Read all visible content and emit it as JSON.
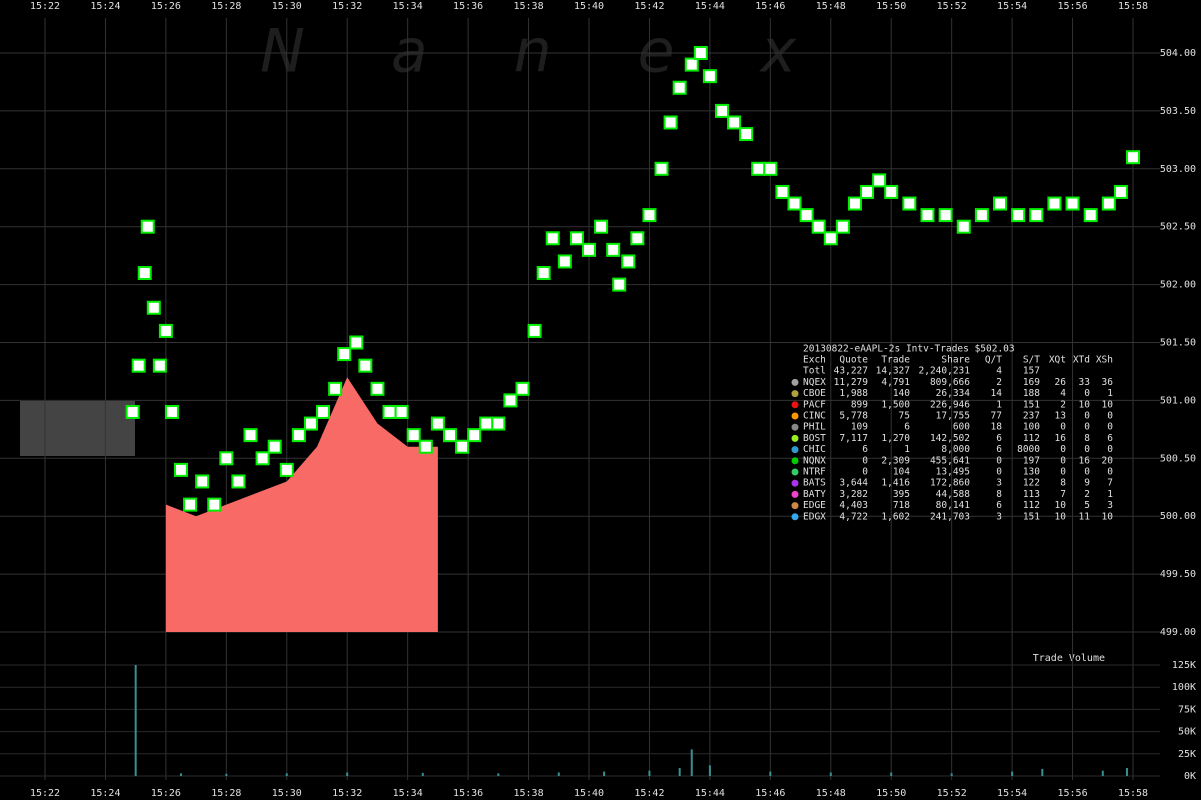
{
  "chart_data": {
    "type": "scatter",
    "watermark": "Nanex",
    "volume_label": "Trade Volume",
    "xlim": [
      921.4,
      958.6
    ],
    "xticks": [
      {
        "value": 922,
        "label": "15:22"
      },
      {
        "value": 924,
        "label": "15:24"
      },
      {
        "value": 926,
        "label": "15:26"
      },
      {
        "value": 928,
        "label": "15:28"
      },
      {
        "value": 930,
        "label": "15:30"
      },
      {
        "value": 932,
        "label": "15:32"
      },
      {
        "value": 934,
        "label": "15:34"
      },
      {
        "value": 936,
        "label": "15:36"
      },
      {
        "value": 938,
        "label": "15:38"
      },
      {
        "value": 940,
        "label": "15:40"
      },
      {
        "value": 942,
        "label": "15:42"
      },
      {
        "value": 944,
        "label": "15:44"
      },
      {
        "value": 946,
        "label": "15:46"
      },
      {
        "value": 948,
        "label": "15:48"
      },
      {
        "value": 950,
        "label": "15:50"
      },
      {
        "value": 952,
        "label": "15:52"
      },
      {
        "value": 954,
        "label": "15:54"
      },
      {
        "value": 956,
        "label": "15:56"
      },
      {
        "value": 958,
        "label": "15:58"
      }
    ],
    "ylim": [
      499,
      504.3
    ],
    "yticks": [
      {
        "value": 499,
        "label": "499.00"
      },
      {
        "value": 499.5,
        "label": "499.50"
      },
      {
        "value": 500,
        "label": "500.00"
      },
      {
        "value": 500.5,
        "label": "500.50"
      },
      {
        "value": 501,
        "label": "501.00"
      },
      {
        "value": 501.5,
        "label": "501.50"
      },
      {
        "value": 502,
        "label": "502.00"
      },
      {
        "value": 502.5,
        "label": "502.50"
      },
      {
        "value": 503,
        "label": "503.00"
      },
      {
        "value": 503.5,
        "label": "503.50"
      },
      {
        "value": 504,
        "label": "504.00"
      }
    ],
    "grid": true,
    "series": [
      {
        "name": "Trades",
        "color": "#00ee00",
        "x": [
          924.9,
          925.1,
          925.3,
          925.4,
          925.6,
          925.8,
          926.0,
          926.2,
          926.5,
          926.8,
          927.2,
          927.6,
          928.0,
          928.4,
          928.8,
          929.2,
          929.6,
          930.0,
          930.4,
          930.8,
          931.2,
          931.6,
          931.9,
          932.3,
          932.6,
          933.0,
          933.4,
          933.8,
          934.2,
          934.6,
          935.0,
          935.4,
          935.8,
          936.2,
          936.6,
          937.0,
          937.4,
          937.8,
          938.2,
          938.5,
          938.8,
          939.2,
          939.6,
          940.0,
          940.4,
          940.8,
          941.0,
          941.3,
          941.6,
          942.0,
          942.4,
          942.7,
          943.0,
          943.4,
          943.7,
          944.0,
          944.4,
          944.8,
          945.2,
          945.6,
          946.0,
          946.4,
          946.8,
          947.2,
          947.6,
          948.0,
          948.4,
          948.8,
          949.2,
          949.6,
          950.0,
          950.6,
          951.2,
          951.8,
          952.4,
          953.0,
          953.6,
          954.2,
          954.8,
          955.4,
          956.0,
          956.6,
          957.2,
          957.6,
          958.0
        ],
        "values": [
          500.9,
          501.3,
          502.1,
          502.5,
          501.8,
          501.3,
          501.6,
          500.9,
          500.4,
          500.1,
          500.3,
          500.1,
          500.5,
          500.3,
          500.7,
          500.5,
          500.6,
          500.4,
          500.7,
          500.8,
          500.9,
          501.1,
          501.4,
          501.5,
          501.3,
          501.1,
          500.9,
          500.9,
          500.7,
          500.6,
          500.8,
          500.7,
          500.6,
          500.7,
          500.8,
          500.8,
          501.0,
          501.1,
          501.6,
          502.1,
          502.4,
          502.2,
          502.4,
          502.3,
          502.5,
          502.3,
          502.0,
          502.2,
          502.4,
          502.6,
          503.0,
          503.4,
          503.7,
          503.9,
          504.0,
          503.8,
          503.5,
          503.4,
          503.3,
          503.0,
          503.0,
          502.8,
          502.7,
          502.6,
          502.5,
          502.4,
          502.5,
          502.7,
          502.8,
          502.9,
          502.8,
          502.7,
          502.6,
          502.6,
          502.5,
          502.6,
          502.7,
          502.6,
          502.6,
          502.7,
          502.7,
          502.6,
          502.7,
          502.8,
          503.1
        ]
      },
      {
        "name": "Spread",
        "type": "area",
        "color": "#f86a66",
        "x": [
          926.0,
          927.0,
          928.0,
          929.0,
          930.0,
          931.0,
          931.5,
          932.0,
          932.5,
          933.0,
          934.0,
          935.0
        ],
        "values": [
          500.1,
          500.0,
          500.1,
          500.2,
          500.3,
          500.6,
          500.9,
          501.2,
          501.0,
          500.8,
          500.6,
          500.6
        ]
      }
    ],
    "volume": {
      "color": "#3a8f8f",
      "ylim": [
        0,
        125000
      ],
      "yticks": [
        {
          "value": 0,
          "label": "0K"
        },
        {
          "value": 25000,
          "label": "25K"
        },
        {
          "value": 50000,
          "label": "50K"
        },
        {
          "value": 75000,
          "label": "75K"
        },
        {
          "value": 100000,
          "label": "100K"
        },
        {
          "value": 125000,
          "label": "125K"
        }
      ],
      "x": [
        925.0,
        926.5,
        928.0,
        930.0,
        932.0,
        934.5,
        937.0,
        939.0,
        940.5,
        942.0,
        943.0,
        943.4,
        944.0,
        946.0,
        948.0,
        950.0,
        952.0,
        954.0,
        955.0,
        957.0,
        957.8
      ],
      "values": [
        125000,
        3000,
        2500,
        3000,
        4000,
        3500,
        3000,
        4000,
        5000,
        6000,
        9000,
        30000,
        12000,
        5000,
        4000,
        4000,
        3000,
        5000,
        8000,
        6000,
        9000
      ]
    },
    "table": {
      "title": "20130822-eAAPL-2s Intv-Trades $502.03",
      "columns": [
        "Exch",
        "Quote",
        "Trade",
        "Share",
        "Q/T",
        "S/T",
        "XQt",
        "XTd",
        "XSh"
      ],
      "rows": [
        {
          "cells": [
            "Totl",
            "43,227",
            "14,327",
            "2,240,231",
            "4",
            "157"
          ]
        },
        {
          "cells": [
            "NQEX",
            "11,279",
            "4,791",
            "809,666",
            "2",
            "169",
            "26",
            "33",
            "36"
          ],
          "color": "#a0a0a0"
        },
        {
          "cells": [
            "CBOE",
            "1,988",
            "140",
            "26,334",
            "14",
            "188",
            "4",
            "0",
            "1"
          ],
          "color": "#b0a040"
        },
        {
          "cells": [
            "PACF",
            "899",
            "1,500",
            "226,946",
            "1",
            "151",
            "2",
            "10",
            "10"
          ],
          "color": "#ee1111"
        },
        {
          "cells": [
            "CINC",
            "5,778",
            "75",
            "17,755",
            "77",
            "237",
            "13",
            "0",
            "0"
          ],
          "color": "#ff9900"
        },
        {
          "cells": [
            "PHIL",
            "109",
            "6",
            "600",
            "18",
            "100",
            "0",
            "0",
            "0"
          ],
          "color": "#888888"
        },
        {
          "cells": [
            "BOST",
            "7,117",
            "1,270",
            "142,502",
            "6",
            "112",
            "16",
            "8",
            "6"
          ],
          "color": "#99ee22"
        },
        {
          "cells": [
            "CHIC",
            "6",
            "1",
            "8,000",
            "6",
            "8000",
            "0",
            "0",
            "0"
          ],
          "color": "#3399cc"
        },
        {
          "cells": [
            "NQNX",
            "0",
            "2,309",
            "455,641",
            "0",
            "197",
            "0",
            "16",
            "20"
          ],
          "color": "#00cc00"
        },
        {
          "cells": [
            "NTRF",
            "0",
            "104",
            "13,495",
            "0",
            "130",
            "0",
            "0",
            "0"
          ],
          "color": "#33cc66"
        },
        {
          "cells": [
            "BATS",
            "3,644",
            "1,416",
            "172,860",
            "3",
            "122",
            "8",
            "9",
            "7"
          ],
          "color": "#aa33ee"
        },
        {
          "cells": [
            "BATY",
            "3,282",
            "395",
            "44,588",
            "8",
            "113",
            "7",
            "2",
            "1"
          ],
          "color": "#ee44cc"
        },
        {
          "cells": [
            "EDGE",
            "4,403",
            "718",
            "80,141",
            "6",
            "112",
            "10",
            "5",
            "3"
          ],
          "color": "#cc8844"
        },
        {
          "cells": [
            "EDGX",
            "4,722",
            "1,602",
            "241,703",
            "3",
            "151",
            "10",
            "11",
            "10"
          ],
          "color": "#33aaee"
        }
      ]
    }
  }
}
